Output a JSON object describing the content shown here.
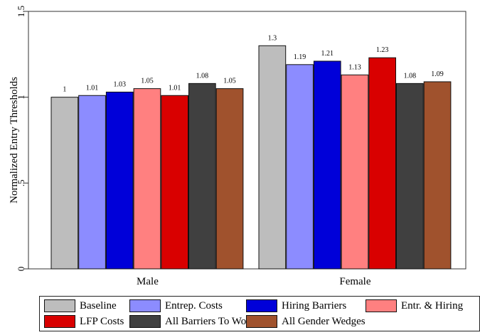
{
  "chart_data": {
    "type": "bar",
    "ylabel": "Normalized Entry Thresholds",
    "ylim": [
      0,
      1.5
    ],
    "yticks": [
      "0",
      ".5",
      "1",
      "1.5"
    ],
    "grid": false,
    "legend_position": "bottom",
    "categories": [
      "Male",
      "Female"
    ],
    "series": [
      {
        "name": "Baseline",
        "color": "#bdbdbd",
        "values": [
          1,
          1.3
        ],
        "labels": [
          "1",
          "1.3"
        ]
      },
      {
        "name": "Entrep. Costs",
        "color": "#8c8cff",
        "values": [
          1.01,
          1.19
        ],
        "labels": [
          "1.01",
          "1.19"
        ]
      },
      {
        "name": "Hiring Barriers",
        "color": "#0000d9",
        "values": [
          1.03,
          1.21
        ],
        "labels": [
          "1.03",
          "1.21"
        ]
      },
      {
        "name": "Entr. & Hiring",
        "color": "#ff8080",
        "values": [
          1.05,
          1.13
        ],
        "labels": [
          "1.05",
          "1.13"
        ]
      },
      {
        "name": "LFP Costs",
        "color": "#d90000",
        "values": [
          1.01,
          1.23
        ],
        "labels": [
          "1.01",
          "1.23"
        ]
      },
      {
        "name": "All Barriers To Women",
        "color": "#404040",
        "values": [
          1.08,
          1.08
        ],
        "labels": [
          "1.08",
          "1.08"
        ]
      },
      {
        "name": "All Gender Wedges",
        "color": "#a0522d",
        "values": [
          1.05,
          1.09
        ],
        "labels": [
          "1.05",
          "1.09"
        ]
      }
    ]
  }
}
